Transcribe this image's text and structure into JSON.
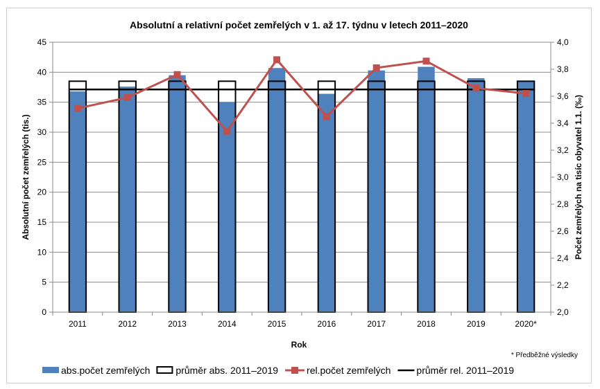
{
  "chart_data": {
    "type": "bar",
    "title": "Absolutní a relativní počet zemřelých v 1. až 17. týdnu v letech 2011–2020",
    "xlabel": "Rok",
    "ylabel": "Absolutní počet zemřelých (tis.)",
    "y2label": "Počet zemřelých na tisíc obyvatel 1.1. (‰)",
    "footnote": "* Předběžné výsledky",
    "categories": [
      "2011",
      "2012",
      "2013",
      "2014",
      "2015",
      "2016",
      "2017",
      "2018",
      "2019",
      "2020*"
    ],
    "ylim": [
      0,
      45
    ],
    "yticks": [
      "0",
      "5",
      "10",
      "15",
      "20",
      "25",
      "30",
      "35",
      "40",
      "45"
    ],
    "y2lim": [
      2.0,
      4.0
    ],
    "y2ticks": [
      "2,0",
      "2,2",
      "2,4",
      "2,6",
      "2,8",
      "3,0",
      "3,2",
      "3,4",
      "3,6",
      "3,8",
      "4,0"
    ],
    "grid": "horizontal",
    "legend_position": "bottom",
    "series": [
      {
        "name": "abs.počet zemřelých",
        "kind": "bar",
        "axis": "left",
        "color": "#4f81bd",
        "values": [
          36.8,
          37.6,
          39.5,
          35.0,
          40.7,
          36.4,
          40.3,
          40.9,
          39.0,
          38.5
        ]
      },
      {
        "name": "průměr abs. 2011–2019",
        "kind": "bar-outline",
        "axis": "left",
        "color": "#000000",
        "values": [
          38.5,
          38.5,
          38.5,
          38.5,
          38.5,
          38.5,
          38.5,
          38.5,
          38.5,
          38.5
        ]
      },
      {
        "name": "rel.počet zemřelých",
        "kind": "line-marker",
        "axis": "right",
        "color": "#c0504d",
        "values": [
          3.51,
          3.59,
          3.76,
          3.34,
          3.87,
          3.45,
          3.81,
          3.86,
          3.66,
          3.62
        ]
      },
      {
        "name": "průměr rel. 2011–2019",
        "kind": "line",
        "axis": "right",
        "color": "#000000",
        "values": [
          3.65,
          3.65,
          3.65,
          3.65,
          3.65,
          3.65,
          3.65,
          3.65,
          3.65,
          3.65
        ]
      }
    ]
  }
}
